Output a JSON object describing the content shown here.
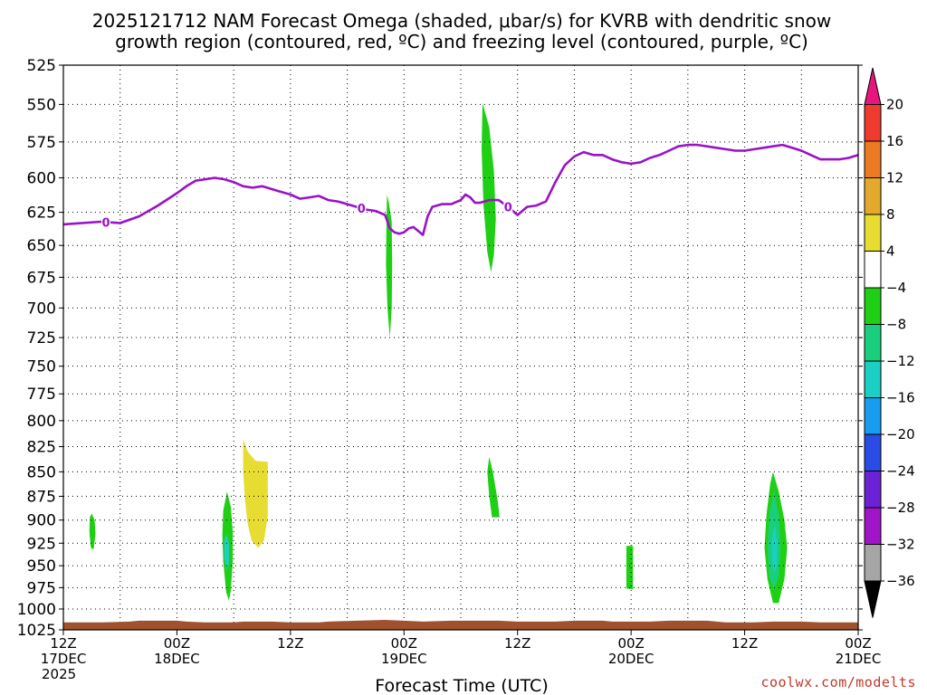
{
  "chart_data": {
    "type": "heatmap",
    "title_line1": "2025121712 NAM Forecast Omega (shaded, μbar/s) for KVRB with dendritic snow",
    "title_line2": "growth region (contoured, red, ºC) and freezing level (contoured, purple, ºC)",
    "xlabel": "Forecast Time (UTC)",
    "credit": "coolwx.com/modelts",
    "y_axis": {
      "scale": "pressure (inverted, log)",
      "range": [
        525,
        1025
      ],
      "ticks": [
        525,
        550,
        575,
        600,
        625,
        650,
        675,
        700,
        725,
        750,
        775,
        800,
        825,
        850,
        875,
        900,
        925,
        950,
        975,
        1000,
        1025
      ]
    },
    "x_axis": {
      "range_hours": [
        0,
        84
      ],
      "ticks": [
        {
          "hour": 0,
          "line1": "12Z",
          "line2": "17DEC",
          "line3": "2025"
        },
        {
          "hour": 12,
          "line1": "00Z",
          "line2": "18DEC",
          "line3": ""
        },
        {
          "hour": 24,
          "line1": "12Z",
          "line2": "",
          "line3": ""
        },
        {
          "hour": 36,
          "line1": "00Z",
          "line2": "19DEC",
          "line3": ""
        },
        {
          "hour": 48,
          "line1": "12Z",
          "line2": "",
          "line3": ""
        },
        {
          "hour": 60,
          "line1": "00Z",
          "line2": "20DEC",
          "line3": ""
        },
        {
          "hour": 72,
          "line1": "12Z",
          "line2": "",
          "line3": ""
        },
        {
          "hour": 84,
          "line1": "00Z",
          "line2": "21DEC",
          "line3": ""
        }
      ],
      "minor_grid_every_hours": 6
    },
    "colorbar": {
      "labels": [
        "20",
        "16",
        "12",
        "8",
        "4",
        "−4",
        "−8",
        "−12",
        "−16",
        "−20",
        "−24",
        "−28",
        "−32",
        "−36"
      ],
      "label_values": [
        20,
        16,
        12,
        8,
        4,
        -4,
        -8,
        -12,
        -16,
        -20,
        -24,
        -28,
        -32,
        -36
      ],
      "bins": [
        {
          "from": 24,
          "to": 20,
          "color": "#e8157f",
          "shape": "triangle"
        },
        {
          "from": 20,
          "to": 16,
          "color": "#ef3a2e"
        },
        {
          "from": 16,
          "to": 12,
          "color": "#ec7a22"
        },
        {
          "from": 12,
          "to": 8,
          "color": "#e3a92c"
        },
        {
          "from": 8,
          "to": 4,
          "color": "#e6dc32"
        },
        {
          "from": 4,
          "to": -4,
          "color": "#ffffff"
        },
        {
          "from": -4,
          "to": -8,
          "color": "#1fcf14"
        },
        {
          "from": -8,
          "to": -12,
          "color": "#19cf7d"
        },
        {
          "from": -12,
          "to": -16,
          "color": "#1ccfc4"
        },
        {
          "from": -16,
          "to": -20,
          "color": "#189cef"
        },
        {
          "from": -20,
          "to": -24,
          "color": "#2a4be4"
        },
        {
          "from": -24,
          "to": -28,
          "color": "#6a22d4"
        },
        {
          "from": -28,
          "to": -32,
          "color": "#a115c9"
        },
        {
          "from": -32,
          "to": -36,
          "color": "#a6a6a6"
        },
        {
          "from": -36,
          "to": -40,
          "color": "#000000",
          "shape": "triangle"
        }
      ]
    },
    "freezing_level": {
      "label": "0",
      "color": "#9a12c8",
      "label_hours": [
        4.5,
        31.5,
        47
      ],
      "points": [
        [
          0,
          634
        ],
        [
          4,
          632
        ],
        [
          6,
          633
        ],
        [
          8,
          628
        ],
        [
          10,
          620
        ],
        [
          12,
          611
        ],
        [
          13,
          606
        ],
        [
          14,
          602
        ],
        [
          15,
          601
        ],
        [
          16,
          600
        ],
        [
          17,
          601
        ],
        [
          18,
          603
        ],
        [
          19,
          606
        ],
        [
          20,
          607
        ],
        [
          21,
          606
        ],
        [
          22,
          608
        ],
        [
          23,
          610
        ],
        [
          24,
          612
        ],
        [
          25,
          615
        ],
        [
          26,
          614
        ],
        [
          27,
          613
        ],
        [
          28,
          616
        ],
        [
          29,
          617
        ],
        [
          30,
          619
        ],
        [
          31,
          621
        ],
        [
          32,
          623
        ],
        [
          33,
          624
        ],
        [
          34,
          627
        ],
        [
          34.5,
          637
        ],
        [
          35,
          640
        ],
        [
          35.5,
          641
        ],
        [
          36,
          640
        ],
        [
          36.5,
          637
        ],
        [
          37,
          636
        ],
        [
          37.5,
          639
        ],
        [
          38,
          642
        ],
        [
          38.5,
          628
        ],
        [
          39,
          621
        ],
        [
          40,
          619
        ],
        [
          41,
          619
        ],
        [
          42,
          616
        ],
        [
          42.5,
          612
        ],
        [
          43,
          614
        ],
        [
          43.5,
          618
        ],
        [
          44,
          618
        ],
        [
          45,
          616
        ],
        [
          46,
          616
        ],
        [
          47,
          621
        ],
        [
          48,
          627
        ],
        [
          49,
          621
        ],
        [
          50,
          620
        ],
        [
          51,
          617
        ],
        [
          52,
          603
        ],
        [
          53,
          591
        ],
        [
          54,
          585
        ],
        [
          55,
          582
        ],
        [
          56,
          584
        ],
        [
          57,
          584
        ],
        [
          58,
          587
        ],
        [
          59,
          589
        ],
        [
          60,
          590
        ],
        [
          61,
          589
        ],
        [
          62,
          586
        ],
        [
          63,
          584
        ],
        [
          64,
          581
        ],
        [
          65,
          578
        ],
        [
          66,
          577
        ],
        [
          67,
          577
        ],
        [
          68,
          578
        ],
        [
          69,
          579
        ],
        [
          70,
          580
        ],
        [
          71,
          581
        ],
        [
          72,
          581
        ],
        [
          73,
          580
        ],
        [
          74,
          579
        ],
        [
          75,
          578
        ],
        [
          76,
          577
        ],
        [
          77,
          579
        ],
        [
          78,
          581
        ],
        [
          79,
          584
        ],
        [
          80,
          587
        ],
        [
          81,
          587
        ],
        [
          82,
          587
        ],
        [
          83,
          586
        ],
        [
          84,
          584
        ]
      ]
    },
    "omega_regions": [
      {
        "value": -6,
        "color": "#1fcf14",
        "points": [
          [
            3.0,
            893
          ],
          [
            3.3,
            900
          ],
          [
            3.4,
            915
          ],
          [
            3.2,
            932
          ],
          [
            2.9,
            930
          ],
          [
            2.75,
            912
          ],
          [
            2.8,
            897
          ]
        ]
      },
      {
        "value": -6,
        "color": "#1fcf14",
        "points": [
          [
            17.3,
            870
          ],
          [
            17.7,
            886
          ],
          [
            17.9,
            912
          ],
          [
            17.9,
            945
          ],
          [
            17.7,
            978
          ],
          [
            17.5,
            990
          ],
          [
            17.2,
            980
          ],
          [
            16.9,
            945
          ],
          [
            16.8,
            915
          ],
          [
            16.9,
            890
          ]
        ]
      },
      {
        "value": -14,
        "color": "#1ccfc4",
        "points": [
          [
            17.25,
            915
          ],
          [
            17.5,
            925
          ],
          [
            17.5,
            948
          ],
          [
            17.25,
            955
          ],
          [
            17.0,
            940
          ],
          [
            17.0,
            922
          ]
        ]
      },
      {
        "value": 6,
        "color": "#e6dc32",
        "points": [
          [
            19.0,
            818
          ],
          [
            19.5,
            830
          ],
          [
            20.3,
            839
          ],
          [
            21.6,
            840
          ],
          [
            21.6,
            896
          ],
          [
            21.2,
            922
          ],
          [
            20.6,
            930
          ],
          [
            19.9,
            922
          ],
          [
            19.5,
            905
          ],
          [
            19.2,
            880
          ],
          [
            19.0,
            850
          ]
        ]
      },
      {
        "value": -6,
        "color": "#1fcf14",
        "points": [
          [
            34.4,
            618
          ],
          [
            34.7,
            632
          ],
          [
            34.75,
            665
          ],
          [
            34.7,
            700
          ],
          [
            34.5,
            725
          ],
          [
            34.25,
            700
          ],
          [
            34.1,
            665
          ],
          [
            34.15,
            632
          ],
          [
            34.2,
            612
          ]
        ]
      },
      {
        "value": -6,
        "color": "#1fcf14",
        "points": [
          [
            44.3,
            549
          ],
          [
            45.0,
            565
          ],
          [
            45.5,
            595
          ],
          [
            45.7,
            630
          ],
          [
            45.5,
            657
          ],
          [
            45.2,
            671
          ],
          [
            44.8,
            655
          ],
          [
            44.4,
            620
          ],
          [
            44.2,
            580
          ]
        ]
      },
      {
        "value": -6,
        "color": "#1fcf14",
        "points": [
          [
            45.0,
            835
          ],
          [
            45.4,
            850
          ],
          [
            45.9,
            880
          ],
          [
            46.1,
            897
          ],
          [
            45.3,
            897
          ],
          [
            45.0,
            875
          ],
          [
            44.8,
            850
          ]
        ]
      },
      {
        "value": -6,
        "color": "#1fcf14",
        "points": [
          [
            59.5,
            928
          ],
          [
            60.2,
            928
          ],
          [
            60.2,
            977
          ],
          [
            59.5,
            976
          ]
        ]
      },
      {
        "value": -6,
        "color": "#1fcf14",
        "points": [
          [
            75.0,
            850
          ],
          [
            75.6,
            870
          ],
          [
            76.2,
            900
          ],
          [
            76.5,
            930
          ],
          [
            76.2,
            965
          ],
          [
            75.6,
            993
          ],
          [
            75.0,
            993
          ],
          [
            74.4,
            965
          ],
          [
            74.1,
            930
          ],
          [
            74.3,
            895
          ],
          [
            74.7,
            862
          ]
        ]
      },
      {
        "value": -10,
        "color": "#19cf7d",
        "points": [
          [
            75.1,
            868
          ],
          [
            75.6,
            895
          ],
          [
            75.8,
            930
          ],
          [
            75.6,
            962
          ],
          [
            75.1,
            978
          ],
          [
            74.6,
            962
          ],
          [
            74.4,
            930
          ],
          [
            74.6,
            895
          ]
        ]
      },
      {
        "value": -14,
        "color": "#1ccfc4",
        "points": [
          [
            75.2,
            905
          ],
          [
            75.45,
            925
          ],
          [
            75.4,
            950
          ],
          [
            75.15,
            958
          ],
          [
            74.9,
            945
          ],
          [
            74.9,
            920
          ]
        ]
      }
    ],
    "terrain": {
      "color": "#a0522d",
      "points": [
        [
          0,
          1016
        ],
        [
          4,
          1016
        ],
        [
          7,
          1015
        ],
        [
          8,
          1014
        ],
        [
          12,
          1014
        ],
        [
          13,
          1015
        ],
        [
          15,
          1016
        ],
        [
          18,
          1016
        ],
        [
          19,
          1015
        ],
        [
          22,
          1015
        ],
        [
          24,
          1016
        ],
        [
          27,
          1016
        ],
        [
          28,
          1015
        ],
        [
          31,
          1014
        ],
        [
          34,
          1013
        ],
        [
          36,
          1014
        ],
        [
          38,
          1015
        ],
        [
          41,
          1014
        ],
        [
          46,
          1014
        ],
        [
          48,
          1015
        ],
        [
          52,
          1015
        ],
        [
          54,
          1014
        ],
        [
          57,
          1014
        ],
        [
          58,
          1015
        ],
        [
          62,
          1015
        ],
        [
          64,
          1014
        ],
        [
          68,
          1014
        ],
        [
          70,
          1016
        ],
        [
          73,
          1016
        ],
        [
          75,
          1015
        ],
        [
          78,
          1015
        ],
        [
          80,
          1016
        ],
        [
          84,
          1016
        ]
      ]
    }
  }
}
